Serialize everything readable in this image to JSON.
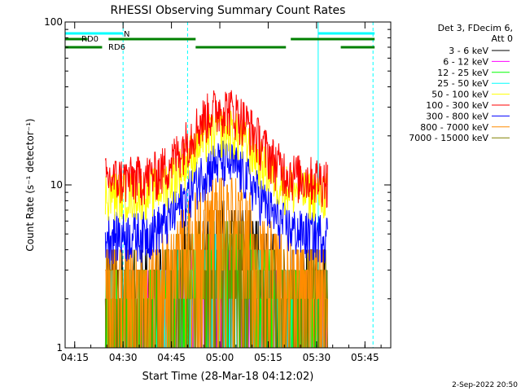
{
  "chart_data": {
    "type": "line",
    "title": "RHESSI Observing Summary Count Rates",
    "xlabel": "Start Time (28-Mar-18 04:12:02)",
    "ylabel": "Count Rate (s⁻¹ detector⁻¹)",
    "y_scale": "log",
    "ylim": [
      1,
      100
    ],
    "xlim": [
      "04:12:02",
      "05:53:00"
    ],
    "x_tick_labels": [
      "04:15",
      "04:30",
      "04:45",
      "05:00",
      "05:15",
      "05:30",
      "05:45"
    ],
    "y_tick_labels": [
      "1",
      "10",
      "100"
    ],
    "legend_title": "Det 3, FDecim 6,\nAtt 0",
    "legend_position": "right",
    "footer": "2-Sep-2022 20:50",
    "series": [
      {
        "name": "3 - 6 keV",
        "color": "#000000",
        "level": 2.6,
        "peak": 5.0
      },
      {
        "name": "6 - 12 keV",
        "color": "#ff00ff",
        "level": 1.7,
        "peak": 3.0
      },
      {
        "name": "12 - 25 keV",
        "color": "#00ff00",
        "level": 2.0,
        "peak": 3.5
      },
      {
        "name": "25 - 50 keV",
        "color": "#00ffff",
        "level": 1.8,
        "peak": 3.2
      },
      {
        "name": "50 - 100 keV",
        "color": "#ffff00",
        "level": 9.0,
        "peak": 22.0
      },
      {
        "name": "100 - 300 keV",
        "color": "#ff0000",
        "level": 11.0,
        "peak": 30.0
      },
      {
        "name": "300 - 800 keV",
        "color": "#0000ff",
        "level": 5.0,
        "peak": 14.0
      },
      {
        "name": "800 - 7000 keV",
        "color": "#ff8c00",
        "level": 2.7,
        "peak": 7.5
      },
      {
        "name": "7000 - 15000 keV",
        "color": "#808000",
        "level": 2.4,
        "peak": 4.0
      }
    ],
    "data_range": [
      "04:24:30",
      "05:33:30"
    ],
    "peak_time": "05:01:00",
    "annotations": [
      {
        "label": "N",
        "color": "#00ffff",
        "segments": [
          [
            "04:12:02",
            "04:30:00"
          ],
          [
            "05:30:30",
            "05:48:00"
          ]
        ]
      },
      {
        "label": "RD0",
        "color": "#008000",
        "segments": [
          [
            "04:12:02",
            "04:19:00"
          ],
          [
            "04:25:30",
            "04:52:30"
          ],
          [
            "05:22:00",
            "05:48:00"
          ]
        ]
      },
      {
        "label": "RD6",
        "color": "#008000",
        "segments": [
          [
            "04:12:02",
            "04:23:30"
          ],
          [
            "04:52:30",
            "05:20:30"
          ],
          [
            "05:37:30",
            "05:48:00"
          ]
        ]
      }
    ],
    "vertical_markers": [
      {
        "time": "04:12:02",
        "style": "solid",
        "color": "#00ffff"
      },
      {
        "time": "04:30:00",
        "style": "dashed",
        "color": "#00ffff"
      },
      {
        "time": "04:50:00",
        "style": "dashed",
        "color": "#00ffff"
      },
      {
        "time": "05:30:30",
        "style": "solid",
        "color": "#00ffff"
      },
      {
        "time": "05:47:30",
        "style": "dashed",
        "color": "#00ffff"
      }
    ]
  }
}
